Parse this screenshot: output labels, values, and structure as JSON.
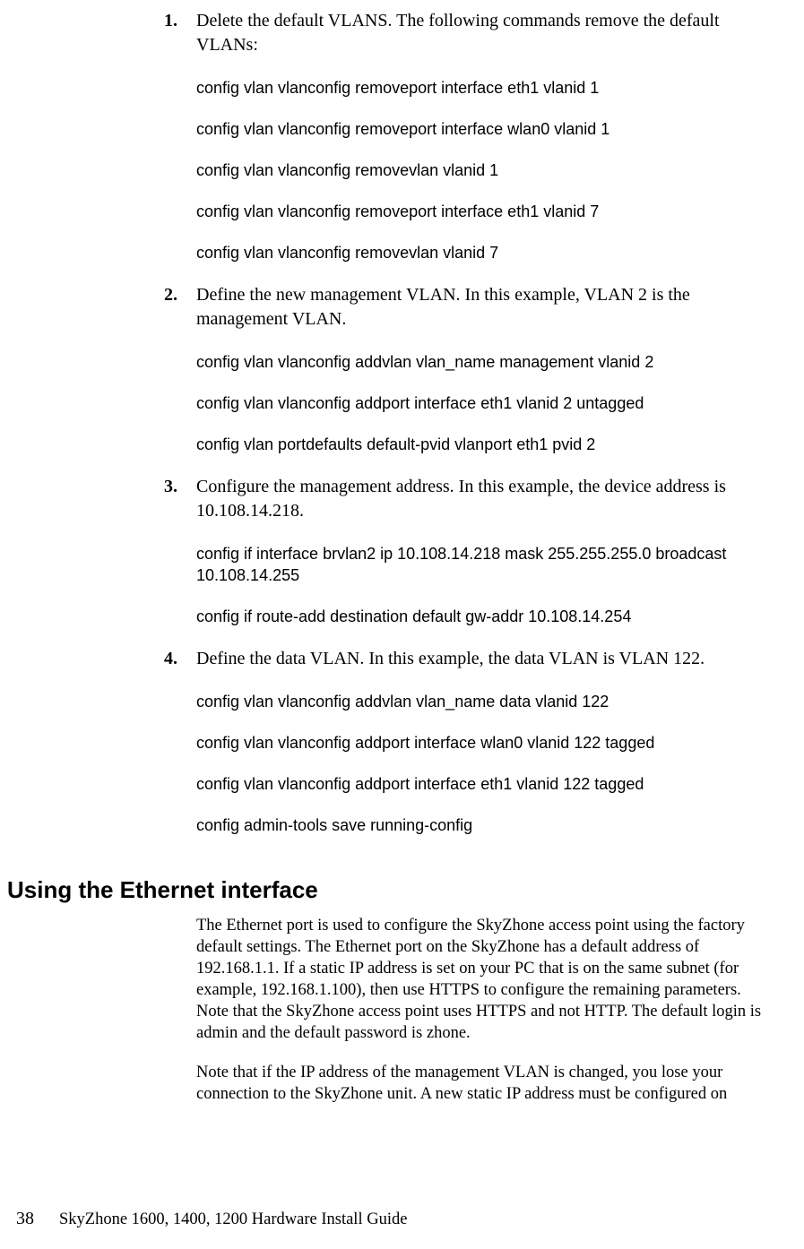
{
  "steps": [
    {
      "num": "1.",
      "text": "Delete the default VLANS. The following commands remove the default VLANs:",
      "cmds": [
        "config vlan vlanconfig removeport interface eth1 vlanid 1",
        "config vlan vlanconfig removeport interface wlan0 vlanid 1",
        "config vlan vlanconfig removevlan vlanid 1",
        "config vlan vlanconfig removeport interface eth1 vlanid 7",
        "config vlan vlanconfig removevlan vlanid 7"
      ]
    },
    {
      "num": "2.",
      "text": "Define the new management VLAN. In this example, VLAN 2 is the management VLAN.",
      "cmds": [
        "config vlan vlanconfig addvlan vlan_name management vlanid 2",
        "config vlan vlanconfig addport interface eth1 vlanid 2 untagged",
        "config vlan portdefaults default-pvid vlanport eth1 pvid 2"
      ]
    },
    {
      "num": "3.",
      "text": "Configure the management address. In this example, the device address is 10.108.14.218.",
      "cmds": [
        "config if interface brvlan2 ip 10.108.14.218 mask 255.255.255.0 broadcast 10.108.14.255",
        "config if route-add destination default gw-addr 10.108.14.254"
      ]
    },
    {
      "num": "4.",
      "text": "Define the data VLAN. In this example, the data VLAN is VLAN 122.",
      "cmds": [
        "config vlan vlanconfig addvlan vlan_name data vlanid 122",
        "config vlan vlanconfig addport interface wlan0 vlanid 122 tagged",
        "config vlan vlanconfig addport interface eth1 vlanid 122 tagged",
        "config admin-tools save running-config"
      ]
    }
  ],
  "section": {
    "title": "Using the Ethernet interface",
    "para1": "The Ethernet port is used to configure the SkyZhone access point using the factory default settings. The Ethernet port on the SkyZhone has a default address of 192.168.1.1. If a static IP address is set on your PC that is on the same subnet (for example, 192.168.1.100), then use HTTPS to configure the remaining parameters. Note that the SkyZhone access point uses HTTPS and not HTTP. The default login is admin and the default password is zhone.",
    "para2": "Note that if the IP address of the management VLAN is changed, you lose your connection to the SkyZhone unit. A new static IP address must be configured on"
  },
  "footer": {
    "page": "38",
    "title": "SkyZhone 1600, 1400, 1200 Hardware Install Guide"
  }
}
